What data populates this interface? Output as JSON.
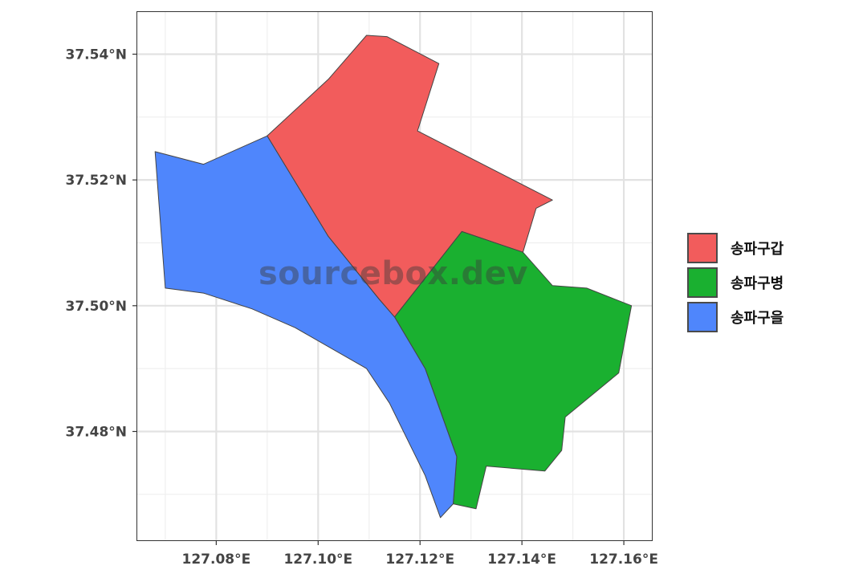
{
  "map": {
    "x_ticks": [
      "127.08°E",
      "127.10°E",
      "127.12°E",
      "127.14°E",
      "127.16°E"
    ],
    "y_ticks": [
      "37.54°N",
      "37.52°N",
      "37.50°N",
      "37.48°N"
    ],
    "x_range": [
      127.0645,
      127.1655
    ],
    "y_range": [
      37.4627,
      37.5467
    ],
    "grid": true,
    "districts": [
      {
        "name": "송파구갑",
        "color": "#f25c5c",
        "coords": [
          [
            127.09,
            37.527
          ],
          [
            127.102,
            37.536
          ],
          [
            127.1095,
            37.543
          ],
          [
            127.1135,
            37.5428
          ],
          [
            127.1237,
            37.5385
          ],
          [
            127.1195,
            37.5278
          ],
          [
            127.146,
            37.5168
          ],
          [
            127.1428,
            37.5155
          ],
          [
            127.1402,
            37.5085
          ],
          [
            127.1282,
            37.5118
          ],
          [
            127.115,
            37.4982
          ],
          [
            127.112,
            37.501
          ],
          [
            127.102,
            37.511
          ]
        ]
      },
      {
        "name": "송파구병",
        "color": "#1ab030",
        "coords": [
          [
            127.115,
            37.4982
          ],
          [
            127.1282,
            37.5118
          ],
          [
            127.1402,
            37.5085
          ],
          [
            127.146,
            37.5032
          ],
          [
            127.1527,
            37.5028
          ],
          [
            127.1615,
            37.5
          ],
          [
            127.159,
            37.4893
          ],
          [
            127.1485,
            37.4823
          ],
          [
            127.1478,
            37.477
          ],
          [
            127.1445,
            37.4737
          ],
          [
            127.133,
            37.4745
          ],
          [
            127.131,
            37.4677
          ],
          [
            127.1265,
            37.4685
          ],
          [
            127.1272,
            37.476
          ],
          [
            127.121,
            37.49
          ]
        ]
      },
      {
        "name": "송파구을",
        "color": "#4f86fc",
        "coords": [
          [
            127.068,
            37.5245
          ],
          [
            127.0775,
            37.5225
          ],
          [
            127.09,
            37.527
          ],
          [
            127.102,
            37.511
          ],
          [
            127.112,
            37.501
          ],
          [
            127.115,
            37.4982
          ],
          [
            127.121,
            37.49
          ],
          [
            127.1272,
            37.476
          ],
          [
            127.1265,
            37.4685
          ],
          [
            127.124,
            37.4663
          ],
          [
            127.121,
            37.473
          ],
          [
            127.114,
            37.4845
          ],
          [
            127.1095,
            37.49
          ],
          [
            127.0955,
            37.4965
          ],
          [
            127.087,
            37.4995
          ],
          [
            127.0775,
            37.502
          ],
          [
            127.07,
            37.5028
          ]
        ]
      }
    ]
  },
  "legend": {
    "items": [
      {
        "label": "송파구갑",
        "color": "#f25c5c"
      },
      {
        "label": "송파구병",
        "color": "#1ab030"
      },
      {
        "label": "송파구을",
        "color": "#4f86fc"
      }
    ]
  },
  "watermark": "sourcebox.dev"
}
